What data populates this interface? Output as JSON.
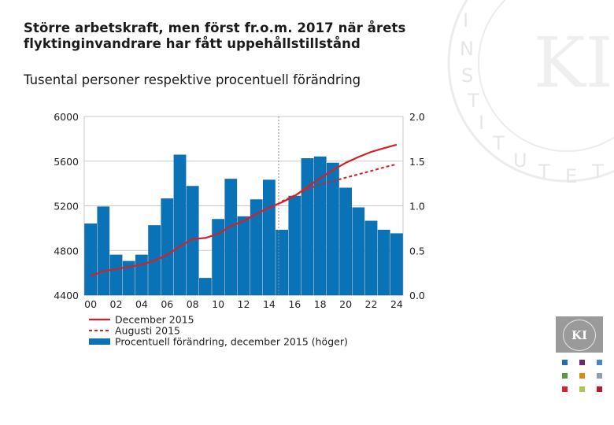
{
  "header": {
    "title_line1": "Större arbetskraft, men först fr.o.m. 2017 när årets",
    "title_line2": "flyktinginvandrare har fått uppehållstillstånd",
    "subtitle": "Tusental personer respektive procentuell förändring"
  },
  "logo": {
    "text": "KI"
  },
  "colors": {
    "bar": "#0a73b8",
    "bar_edge": "#0a5f99",
    "line": "#d42027",
    "grid": "#c9c9c9",
    "axis_text": "#222222",
    "forecast_line": "#8c8c8c",
    "watermark": "#e8e8e8",
    "logo_squares": [
      "#1f6fb5",
      "#6a2c6e",
      "#4a86c8",
      "#5a9a3a",
      "#d68a1a",
      "#8aa0b0",
      "#cc2a2a",
      "#a8c850",
      "#b01f2a"
    ]
  },
  "chart_data": {
    "type": "bar+line",
    "title": "Större arbetskraft, men först fr.o.m. 2017 när årets flyktinginvandrare har fått uppehållstillstånd",
    "subtitle": "Tusental personer respektive procentuell förändring",
    "x_tick_labels": [
      "00",
      "02",
      "04",
      "06",
      "08",
      "10",
      "12",
      "14",
      "16",
      "18",
      "20",
      "22",
      "24"
    ],
    "years": [
      2000,
      2001,
      2002,
      2003,
      2004,
      2005,
      2006,
      2007,
      2008,
      2009,
      2010,
      2011,
      2012,
      2013,
      2014,
      2015,
      2016,
      2017,
      2018,
      2019,
      2020,
      2021,
      2022,
      2023,
      2024
    ],
    "left_axis": {
      "min": 4400,
      "max": 6000,
      "ticks": [
        4400,
        4800,
        5200,
        5600,
        6000
      ],
      "tick_labels": [
        "4400",
        "4800",
        "5200",
        "5600",
        "6000"
      ]
    },
    "right_axis": {
      "min": 0.0,
      "max": 2.0,
      "ticks": [
        0.0,
        0.5,
        1.0,
        1.5,
        2.0
      ],
      "tick_labels": [
        "0.0",
        "0.5",
        "1.0",
        "1.5",
        "2.0"
      ]
    },
    "forecast_start_year": 2015,
    "series": [
      {
        "name": "Procentuell förändring, december 2015 (höger)",
        "type": "bar",
        "axis": "right",
        "values": [
          0.8,
          0.99,
          0.45,
          0.38,
          0.45,
          0.78,
          1.08,
          1.57,
          1.22,
          0.19,
          0.85,
          1.3,
          0.88,
          1.07,
          1.29,
          0.73,
          1.11,
          1.53,
          1.55,
          1.48,
          1.2,
          0.98,
          0.83,
          0.73,
          0.69
        ]
      },
      {
        "name": "December 2015",
        "type": "line",
        "style": "solid",
        "axis": "left",
        "values": [
          4572,
          4614,
          4634,
          4652,
          4673,
          4709,
          4761,
          4837,
          4903,
          4912,
          4950,
          5018,
          5065,
          5126,
          5184,
          5232,
          5288,
          5368,
          5447,
          5519,
          5585,
          5637,
          5683,
          5716,
          5748
        ]
      },
      {
        "name": "Augusti 2015",
        "type": "line",
        "style": "dashed",
        "axis": "left",
        "start_index": 15,
        "values": [
          5240,
          5294,
          5347,
          5391,
          5420,
          5452,
          5482,
          5512,
          5545,
          5572
        ]
      }
    ],
    "legend": [
      {
        "label": "December 2015",
        "kind": "line"
      },
      {
        "label": "Augusti 2015",
        "kind": "dashed"
      },
      {
        "label": "Procentuell förändring, december 2015 (höger)",
        "kind": "bar"
      }
    ],
    "legend_position": "bottom-left",
    "grid": true
  }
}
